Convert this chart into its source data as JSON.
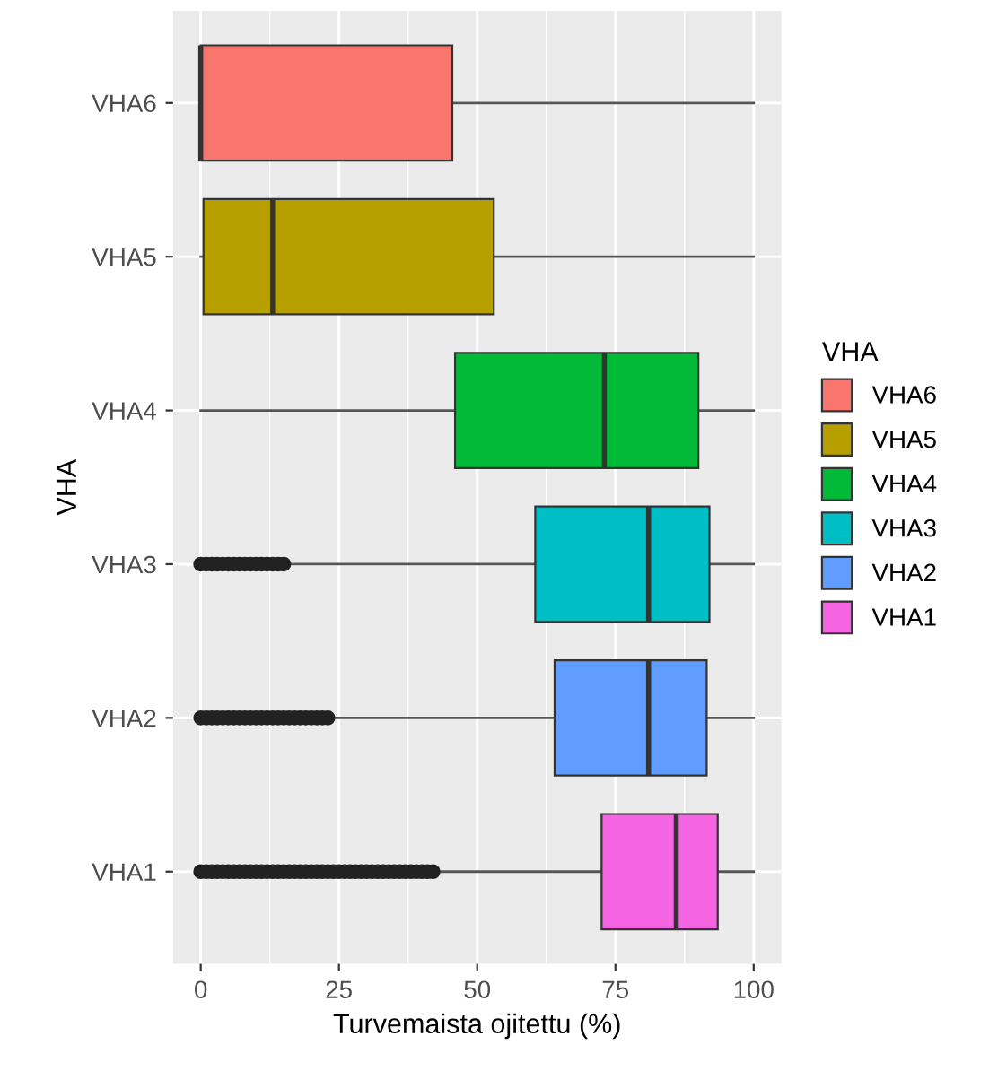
{
  "chart_data": {
    "type": "box",
    "orientation": "horizontal",
    "xlabel": "Turvemaista ojitettu (%)",
    "ylabel": "VHA",
    "legend_title": "VHA",
    "legend": "right",
    "grid": true,
    "categories": [
      "VHA6",
      "VHA5",
      "VHA4",
      "VHA3",
      "VHA2",
      "VHA1"
    ],
    "series": [
      {
        "name": "VHA6",
        "color": "#f8766d",
        "boxes": [
          {
            "low": 0,
            "q1": 0,
            "median": 0,
            "q3": 45.5,
            "high": 100
          },
          null,
          null,
          null,
          null,
          null
        ]
      },
      {
        "name": "VHA5",
        "color": "#b79f00",
        "boxes": [
          null,
          {
            "low": 0,
            "q1": 0.5,
            "median": 13,
            "q3": 53,
            "high": 100
          },
          null,
          null,
          null,
          null
        ]
      },
      {
        "name": "VHA4",
        "color": "#00ba38",
        "boxes": [
          null,
          null,
          {
            "low": 0,
            "q1": 46,
            "median": 73,
            "q3": 90,
            "high": 100
          },
          null,
          null,
          null
        ]
      },
      {
        "name": "VHA3",
        "color": "#00bfc4",
        "boxes": [
          null,
          null,
          null,
          {
            "low": 16,
            "q1": 60.5,
            "median": 81,
            "q3": 92,
            "high": 100,
            "outliers": [
              0,
              1,
              2,
              3,
              4,
              5,
              6,
              7,
              8,
              9,
              10,
              11,
              12,
              13,
              14,
              15
            ]
          },
          null,
          null
        ]
      },
      {
        "name": "VHA2",
        "color": "#619cff",
        "boxes": [
          null,
          null,
          null,
          null,
          {
            "low": 24,
            "q1": 64,
            "median": 81,
            "q3": 91.5,
            "high": 100,
            "outliers": [
              0,
              1,
              2,
              3,
              4,
              5,
              6,
              7,
              8,
              9,
              10,
              11,
              12,
              13,
              14,
              15,
              16,
              17,
              18,
              19,
              20,
              21,
              22,
              23
            ]
          },
          null
        ]
      },
      {
        "name": "VHA1",
        "color": "#f564e3",
        "boxes": [
          null,
          null,
          null,
          null,
          null,
          {
            "low": 43,
            "q1": 72.5,
            "median": 86,
            "q3": 93.5,
            "high": 100,
            "outliers": [
              0,
              1,
              2,
              3,
              4,
              5,
              6,
              7,
              8,
              9,
              10,
              11,
              12,
              13,
              14,
              15,
              16,
              17,
              18,
              19,
              20,
              21,
              22,
              23,
              24,
              25,
              26,
              27,
              28,
              29,
              30,
              31,
              32,
              33,
              34,
              35,
              36,
              37,
              38,
              39,
              40,
              41,
              42
            ]
          }
        ]
      }
    ],
    "xlim": [
      -5,
      105
    ],
    "xticks": [
      0,
      25,
      50,
      75,
      100
    ]
  }
}
